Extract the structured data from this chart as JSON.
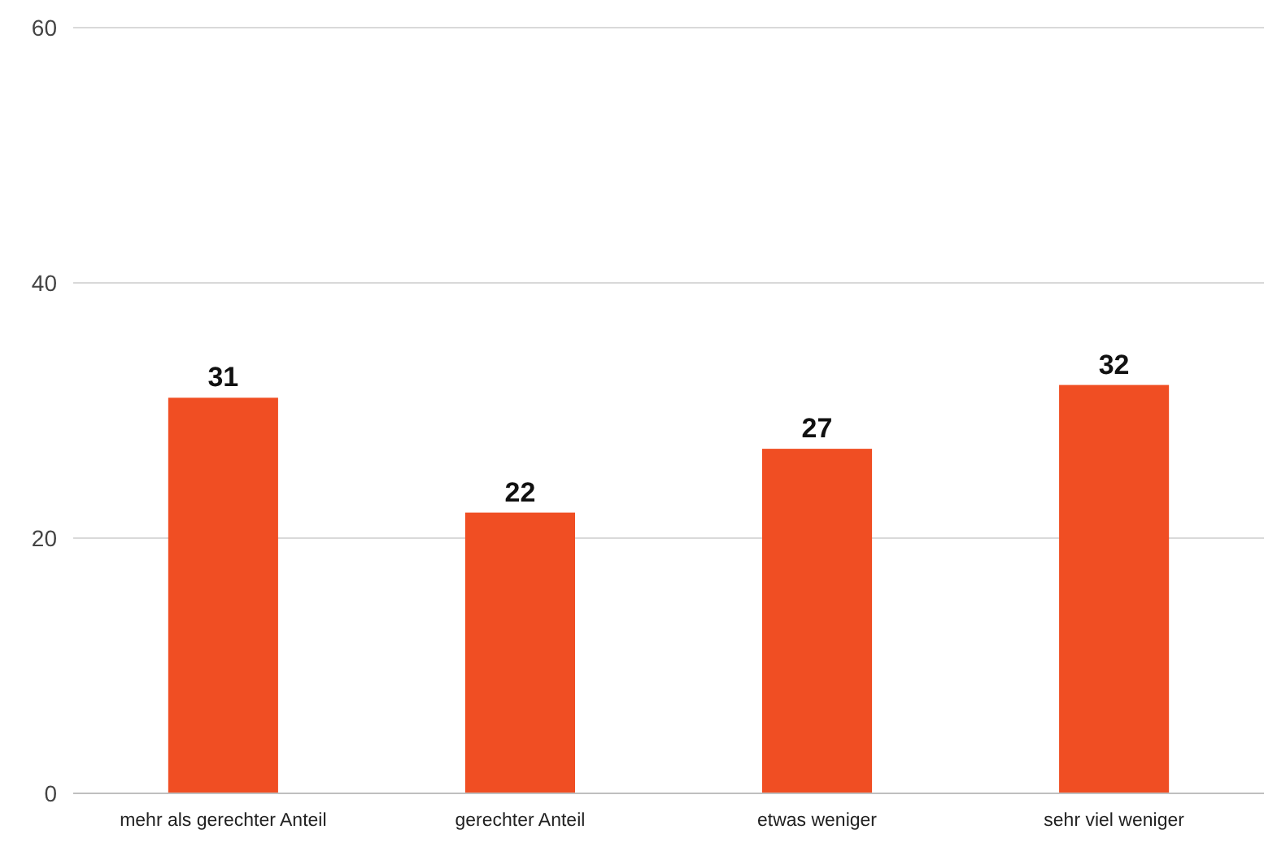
{
  "chart_data": {
    "type": "bar",
    "categories": [
      "mehr als gerechter Anteil",
      "gerechter Anteil",
      "etwas weniger",
      "sehr viel weniger"
    ],
    "values": [
      31,
      22,
      27,
      32
    ],
    "color": "#f04e23",
    "ylim": [
      0,
      60
    ],
    "yticks": [
      0,
      20,
      40,
      60
    ],
    "grid": "y",
    "data_labels": true
  }
}
